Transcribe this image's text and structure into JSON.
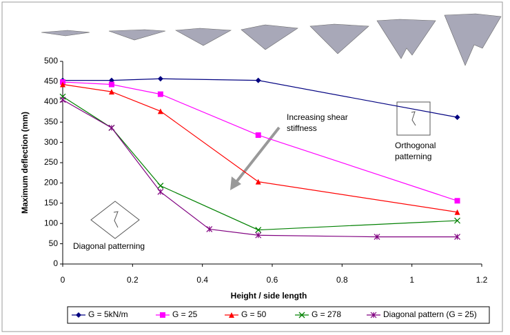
{
  "chart_data": {
    "type": "line",
    "x_label": "Height / side length",
    "y_label": "Maximum deflection (mm)",
    "xlim": [
      0,
      1.2
    ],
    "xticks": [
      0,
      0.2,
      0.4,
      0.6,
      0.8,
      1,
      1.2
    ],
    "ylim": [
      0,
      500
    ],
    "yticks": [
      0,
      50,
      100,
      150,
      200,
      250,
      300,
      350,
      400,
      450,
      500
    ],
    "legend": "bottom",
    "series": [
      {
        "name": "G = 5kN/m",
        "color": "#000080",
        "marker": "diamond",
        "x": [
          0,
          0.14,
          0.28,
          0.56,
          1.13
        ],
        "values": [
          453,
          453,
          457,
          453,
          362
        ]
      },
      {
        "name": "G = 25",
        "color": "#ff00ff",
        "marker": "square",
        "x": [
          0,
          0.14,
          0.28,
          0.56,
          1.13
        ],
        "values": [
          449,
          443,
          419,
          318,
          156
        ]
      },
      {
        "name": "G = 50",
        "color": "#ff0000",
        "marker": "triangle",
        "x": [
          0,
          0.14,
          0.28,
          0.56,
          1.13
        ],
        "values": [
          443,
          425,
          377,
          203,
          128
        ]
      },
      {
        "name": "G = 278",
        "color": "#008000",
        "marker": "x",
        "x": [
          0,
          0.14,
          0.28,
          0.56,
          1.13
        ],
        "values": [
          413,
          336,
          193,
          84,
          107
        ]
      },
      {
        "name": "Diagonal pattern (G = 25)",
        "color": "#800080",
        "marker": "star",
        "x": [
          0,
          0.14,
          0.28,
          0.42,
          0.56,
          0.9,
          1.13
        ],
        "values": [
          405,
          336,
          178,
          86,
          71,
          67,
          67
        ]
      }
    ],
    "annotations": [
      "Increasing shear",
      "stiffness",
      "Orthogonal",
      "patterning",
      "Diagonal patterning"
    ]
  }
}
